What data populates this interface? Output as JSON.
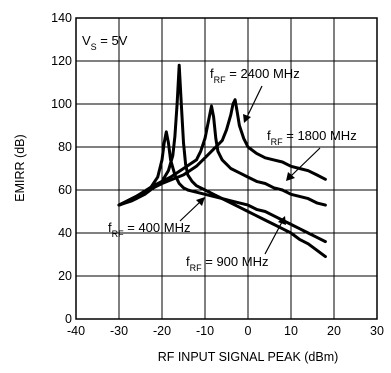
{
  "chart_data": {
    "type": "line",
    "xlabel": "RF INPUT SIGNAL PEAK (dBm)",
    "ylabel": "EMIRR (dB)",
    "xlim": [
      -40,
      30
    ],
    "ylim": [
      0,
      140
    ],
    "xticks": [
      -40,
      -30,
      -20,
      -10,
      0,
      10,
      20,
      30
    ],
    "yticks": [
      0,
      20,
      40,
      60,
      80,
      100,
      120,
      140
    ],
    "grid": true,
    "condition": {
      "prefix": "V",
      "sub": "S",
      "suffix": " = 5V"
    },
    "series": [
      {
        "name": "400 MHz",
        "label_prefix": "f",
        "label_sub": "RF",
        "label_suffix": " = 400 MHz",
        "x": [
          -30,
          -26,
          -23,
          -21,
          -20,
          -19.5,
          -19,
          -18.5,
          -18,
          -17,
          -16,
          -15,
          -14,
          -12,
          -10,
          -8,
          -6,
          -4,
          -2,
          0,
          2,
          4,
          6,
          8,
          10,
          12,
          14,
          16,
          18
        ],
        "y": [
          53,
          56,
          60,
          66,
          74,
          82,
          87,
          82,
          74,
          67,
          63,
          61,
          60,
          59,
          58,
          57,
          56,
          55,
          54,
          53,
          51,
          50,
          48,
          46,
          44,
          42,
          40,
          38,
          36
        ]
      },
      {
        "name": "900 MHz",
        "label_prefix": "f",
        "label_sub": "RF",
        "label_suffix": " = 900 MHz",
        "x": [
          -30,
          -27,
          -24,
          -22,
          -20,
          -18.5,
          -17.5,
          -17,
          -16.5,
          -16,
          -15.5,
          -15,
          -14.5,
          -14,
          -13,
          -12,
          -10,
          -8,
          -6,
          -4,
          -2,
          0,
          2,
          4,
          6,
          8,
          10,
          12,
          14,
          16,
          18
        ],
        "y": [
          53,
          55,
          58,
          61,
          64,
          69,
          76,
          85,
          100,
          118,
          100,
          82,
          72,
          67,
          64,
          62,
          60,
          58,
          56,
          54,
          52,
          50,
          48,
          46,
          44,
          42,
          40,
          37,
          35,
          32,
          29
        ]
      },
      {
        "name": "1800 MHz",
        "label_prefix": "f",
        "label_sub": "RF",
        "label_suffix": " = 1800 MHz",
        "x": [
          -30,
          -26,
          -22,
          -18,
          -15,
          -12,
          -11,
          -10,
          -9,
          -8.5,
          -8,
          -7.5,
          -7,
          -6,
          -5,
          -4,
          -2,
          0,
          2,
          4,
          6,
          8,
          10,
          12,
          14,
          16,
          18
        ],
        "y": [
          53,
          57,
          62,
          66,
          70,
          74,
          78,
          84,
          94,
          99,
          94,
          84,
          78,
          74,
          72,
          70,
          68,
          66,
          64,
          63,
          61,
          60,
          58,
          57,
          56,
          54,
          53
        ]
      },
      {
        "name": "2400 MHz",
        "label_prefix": "f",
        "label_sub": "RF",
        "label_suffix": " = 2400 MHz",
        "x": [
          -30,
          -25,
          -20,
          -15,
          -12,
          -10,
          -8,
          -6,
          -5,
          -4,
          -3.5,
          -3,
          -2.5,
          -2,
          -1,
          0,
          2,
          4,
          6,
          8,
          10,
          12,
          14,
          16,
          18
        ],
        "y": [
          53,
          58,
          63,
          67,
          71,
          75,
          79,
          83,
          88,
          95,
          100,
          102,
          96,
          90,
          84,
          80,
          77,
          75,
          74,
          73,
          71,
          70,
          69,
          67,
          65
        ]
      }
    ]
  }
}
